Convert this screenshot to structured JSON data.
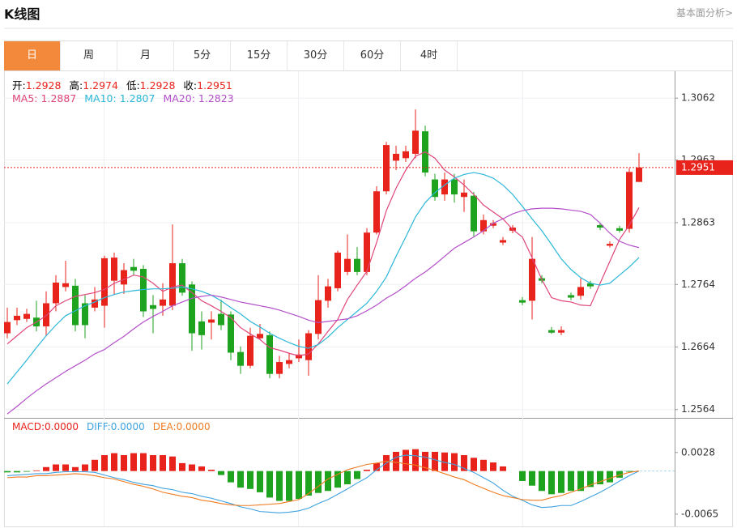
{
  "header": {
    "title": "K线图",
    "link": "基本面分析>"
  },
  "tabs": [
    {
      "label": "日",
      "active": true
    },
    {
      "label": "周"
    },
    {
      "label": "月"
    },
    {
      "label": "5分"
    },
    {
      "label": "15分"
    },
    {
      "label": "30分"
    },
    {
      "label": "60分"
    },
    {
      "label": "4时"
    }
  ],
  "chart_data": [
    {
      "type": "candlestick",
      "info": [
        {
          "label": "开:",
          "value": 1.2928
        },
        {
          "label": "高:",
          "value": 1.2974
        },
        {
          "label": "低:",
          "value": 1.2928
        },
        {
          "label": "收:",
          "value": 1.2951
        }
      ],
      "categories": [
        null,
        null,
        null,
        null,
        null,
        null,
        null,
        null,
        null,
        null,
        null,
        null,
        null,
        null,
        null,
        null,
        null,
        null,
        null,
        null,
        null,
        null,
        null,
        null,
        null,
        null,
        null,
        null,
        null,
        null,
        null,
        null,
        null,
        null,
        null,
        null,
        null,
        null,
        null,
        null,
        null,
        null,
        null,
        null,
        null,
        null,
        null,
        null,
        null,
        null,
        null,
        null,
        null,
        null,
        null,
        null,
        null,
        null,
        null,
        null,
        null,
        null,
        null,
        null,
        null,
        null
      ],
      "open": [
        1.2686,
        1.2707,
        1.2709,
        1.2711,
        1.2697,
        1.2734,
        1.276,
        1.2762,
        1.2734,
        1.2727,
        1.273,
        1.277,
        1.2764,
        1.2792,
        1.2789,
        1.2731,
        1.273,
        1.273,
        1.2798,
        1.2764,
        1.2705,
        1.2703,
        1.2717,
        1.2716,
        1.2656,
        1.2634,
        1.2678,
        1.2683,
        1.2621,
        1.2637,
        1.2646,
        1.2643,
        1.2685,
        1.2738,
        1.2758,
        1.2784,
        1.2805,
        1.2784,
        1.2847,
        1.2913,
        1.2962,
        1.2966,
        1.2973,
        1.3009,
        1.2932,
        1.2908,
        1.2932,
        1.2904,
        1.2906,
        1.2849,
        1.2858,
        1.2831,
        1.285,
        1.2739,
        1.2738,
        1.2774,
        1.2691,
        1.2687,
        1.2747,
        1.2746,
        1.2766,
        1.2859,
        1.2826,
        1.2854,
        1.2853,
        1.2928
      ],
      "high": [
        1.2727,
        1.2727,
        1.2725,
        1.2738,
        1.2753,
        1.2779,
        1.2802,
        1.2773,
        1.2747,
        1.276,
        1.281,
        1.2815,
        1.2798,
        1.2805,
        1.2795,
        1.2747,
        1.2766,
        1.286,
        1.2805,
        1.2769,
        1.2721,
        1.2721,
        1.274,
        1.2721,
        1.2665,
        1.2695,
        1.2701,
        1.2689,
        1.265,
        1.2654,
        1.2676,
        1.2691,
        1.2779,
        1.2773,
        1.2818,
        1.2844,
        1.2824,
        1.2854,
        1.2921,
        1.2992,
        1.2986,
        1.2986,
        1.3044,
        1.3018,
        1.2941,
        1.2943,
        1.2941,
        1.2932,
        1.2912,
        1.2876,
        1.2867,
        1.284,
        1.2859,
        1.2744,
        1.284,
        1.2779,
        1.2696,
        1.2697,
        1.2751,
        1.2774,
        1.277,
        1.2863,
        1.2833,
        1.2858,
        1.295,
        1.2974
      ],
      "low": [
        1.2678,
        1.2699,
        1.2704,
        1.2689,
        1.2682,
        1.2721,
        1.2753,
        1.2689,
        1.2678,
        1.2721,
        1.2695,
        1.2747,
        1.2749,
        1.2779,
        1.2712,
        1.2686,
        1.2714,
        1.2723,
        1.2746,
        1.2658,
        1.266,
        1.2676,
        1.2691,
        1.2643,
        1.2621,
        1.263,
        1.2676,
        1.2614,
        1.2614,
        1.263,
        1.264,
        1.2618,
        1.2676,
        1.2727,
        1.2753,
        1.2779,
        1.2779,
        1.2779,
        1.2844,
        1.2908,
        1.2947,
        1.296,
        1.2966,
        1.2937,
        1.2898,
        1.2898,
        1.2895,
        1.288,
        1.2841,
        1.2844,
        1.2854,
        1.2827,
        1.2846,
        1.2731,
        1.2708,
        1.2766,
        1.2685,
        1.2683,
        1.2739,
        1.274,
        1.2757,
        1.2851,
        1.2823,
        1.2847,
        1.2847,
        1.2928
      ],
      "close": [
        1.2704,
        1.2714,
        1.2717,
        1.2697,
        1.2734,
        1.2767,
        1.2766,
        1.2699,
        1.2699,
        1.274,
        1.2806,
        1.2807,
        1.2787,
        1.2786,
        1.2721,
        1.2725,
        1.274,
        1.2798,
        1.2751,
        1.2686,
        1.2683,
        1.2708,
        1.2699,
        1.2655,
        1.2634,
        1.2682,
        1.2685,
        1.2621,
        1.264,
        1.2643,
        1.2652,
        1.2686,
        1.2739,
        1.2761,
        1.2815,
        1.2805,
        1.2784,
        1.2847,
        1.2913,
        1.2987,
        1.2973,
        1.2977,
        1.301,
        1.2943,
        1.2904,
        1.2932,
        1.2908,
        1.2911,
        1.2849,
        1.2867,
        1.2862,
        1.2835,
        1.2855,
        1.2735,
        1.2805,
        1.277,
        1.2687,
        1.2691,
        1.2743,
        1.276,
        1.2761,
        1.2855,
        1.2829,
        1.285,
        1.2944,
        1.2951
      ],
      "up_color": "#e8231b",
      "down_color": "#1ea31e",
      "series": [
        {
          "name": "MA5:",
          "color": "#e0457b",
          "values": [
            1.2669,
            1.2682,
            1.2695,
            1.2704,
            1.2714,
            1.273,
            1.2738,
            1.2745,
            1.2748,
            1.2751,
            1.2756,
            1.2766,
            1.2772,
            1.2779,
            1.2776,
            1.2766,
            1.2753,
            1.276,
            1.2763,
            1.2751,
            1.2738,
            1.273,
            1.2721,
            1.2711,
            1.2695,
            1.2685,
            1.2676,
            1.2663,
            1.2659,
            1.2654,
            1.265,
            1.2653,
            1.2669,
            1.2689,
            1.2708,
            1.274,
            1.2763,
            1.2785,
            1.2831,
            1.2882,
            1.2918,
            1.2947,
            1.2969,
            1.2976,
            1.2966,
            1.2947,
            1.2936,
            1.2923,
            1.2908,
            1.2891,
            1.288,
            1.2869,
            1.2852,
            1.284,
            1.2807,
            1.2772,
            1.2743,
            1.2738,
            1.2736,
            1.2731,
            1.273,
            1.2766,
            1.2801,
            1.2836,
            1.2859,
            1.2887
          ]
        },
        {
          "name": "MA10:",
          "color": "#2bb7d8",
          "values": [
            1.2605,
            1.2624,
            1.2643,
            1.2663,
            1.2682,
            1.2699,
            1.2714,
            1.2722,
            1.273,
            1.2736,
            1.2743,
            1.2748,
            1.2752,
            1.2754,
            1.2756,
            1.2757,
            1.2757,
            1.2758,
            1.276,
            1.2757,
            1.2753,
            1.2747,
            1.2738,
            1.2727,
            1.2717,
            1.2705,
            1.2696,
            1.2686,
            1.2678,
            1.2671,
            1.2665,
            1.2662,
            1.2668,
            1.268,
            1.2695,
            1.2708,
            1.2721,
            1.2734,
            1.2753,
            1.2776,
            1.2809,
            1.284,
            1.2872,
            1.2895,
            1.2911,
            1.2923,
            1.2934,
            1.294,
            1.2943,
            1.294,
            1.2934,
            1.2923,
            1.2908,
            1.2889,
            1.2869,
            1.285,
            1.2828,
            1.2805,
            1.2788,
            1.2775,
            1.2766,
            1.2763,
            1.2766,
            1.2779,
            1.2792,
            1.2807
          ]
        },
        {
          "name": "MA20:",
          "color": "#b44fca",
          "values": [
            1.2557,
            1.2569,
            1.2582,
            1.2594,
            1.2605,
            1.2615,
            1.2625,
            1.2634,
            1.2643,
            1.2653,
            1.266,
            1.2671,
            1.2681,
            1.2693,
            1.2704,
            1.2713,
            1.2721,
            1.273,
            1.2736,
            1.2742,
            1.2745,
            1.2747,
            1.2744,
            1.274,
            1.2736,
            1.2733,
            1.273,
            1.2727,
            1.2723,
            1.2718,
            1.2713,
            1.2707,
            1.2703,
            1.2705,
            1.2707,
            1.2709,
            1.2714,
            1.2722,
            1.2731,
            1.2742,
            1.2751,
            1.2762,
            1.2774,
            1.2784,
            1.2796,
            1.2809,
            1.2822,
            1.2831,
            1.284,
            1.285,
            1.2862,
            1.2869,
            1.2877,
            1.2882,
            1.2885,
            1.2886,
            1.2886,
            1.2885,
            1.2883,
            1.2881,
            1.2876,
            1.2862,
            1.2846,
            1.2833,
            1.2827,
            1.2823
          ]
        }
      ],
      "last_price": {
        "value": 1.2951,
        "color": "#e8231b"
      },
      "ylim": [
        1.2552,
        1.3105
      ],
      "yticks": [
        1.3062,
        1.2963,
        1.2863,
        1.2764,
        1.2664,
        1.2564
      ],
      "grid": true
    },
    {
      "type": "bar",
      "name": "MACD:",
      "legend_label": "0.0000",
      "color": "#e8231b",
      "categories": [
        null,
        null,
        null,
        null,
        null,
        null,
        null,
        null,
        null,
        null,
        null,
        null,
        null,
        null,
        null,
        null,
        null,
        null,
        null,
        null,
        null,
        null,
        null,
        null,
        null,
        null,
        null,
        null,
        null,
        null,
        null,
        null,
        null,
        null,
        null,
        null,
        null,
        null,
        null,
        null,
        null,
        null,
        null,
        null,
        null,
        null,
        null,
        null,
        null,
        null,
        null,
        null,
        null,
        null,
        null,
        null,
        null,
        null,
        null,
        null,
        null,
        null,
        null,
        null,
        null,
        null
      ],
      "values": [
        -0.0002,
        -0.0002,
        -0.0001,
        0.0001,
        0.0006,
        0.001,
        0.001,
        0.0006,
        0.001,
        0.0017,
        0.0024,
        0.0027,
        0.0024,
        0.0027,
        0.0027,
        0.0024,
        0.0024,
        0.0022,
        0.0012,
        0.001,
        0.0007,
        0.0002,
        -0.0006,
        -0.0017,
        -0.0025,
        -0.0027,
        -0.0032,
        -0.004,
        -0.0045,
        -0.0045,
        -0.0042,
        -0.0037,
        -0.0033,
        -0.003,
        -0.0025,
        -0.002,
        -0.0012,
        0.0002,
        0.0012,
        0.0024,
        0.0029,
        0.0032,
        0.0033,
        0.0029,
        0.0029,
        0.0028,
        0.0027,
        0.0024,
        0.002,
        0.0017,
        0.0013,
        0.0007,
        0,
        -0.0015,
        -0.0022,
        -0.003,
        -0.0035,
        -0.0033,
        -0.003,
        -0.003,
        -0.0024,
        -0.002,
        -0.0017,
        -0.001,
        -0.0001,
        0
      ],
      "up_color": "#e8231b",
      "down_color": "#1ea31e",
      "series": [
        {
          "name": "DIFF:",
          "legend_label": "0.0000",
          "color": "#3ea2e0",
          "values": [
            -0.0007,
            -0.0006,
            -0.0005,
            -0.0004,
            -0.0004,
            -0.0002,
            -0.0001,
            -0.0001,
            -0.0001,
            -0.0002,
            -0.0006,
            -0.001,
            -0.0013,
            -0.0017,
            -0.002,
            -0.0022,
            -0.0026,
            -0.0028,
            -0.0032,
            -0.0034,
            -0.0038,
            -0.0041,
            -0.0045,
            -0.0049,
            -0.0054,
            -0.0057,
            -0.0061,
            -0.0062,
            -0.0063,
            -0.0062,
            -0.006,
            -0.0056,
            -0.0049,
            -0.0043,
            -0.0035,
            -0.0027,
            -0.0018,
            -0.001,
            0.0002,
            0.0012,
            0.0021,
            0.0024,
            0.0023,
            0.0021,
            0.0017,
            0.0013,
            0.001,
            0.0004,
            -0.0002,
            -0.001,
            -0.0018,
            -0.0029,
            -0.0038,
            -0.0044,
            -0.0051,
            -0.0055,
            -0.0054,
            -0.0052,
            -0.0052,
            -0.0046,
            -0.0039,
            -0.0032,
            -0.0024,
            -0.0015,
            -0.0007,
            0
          ]
        },
        {
          "name": "DEA:",
          "legend_label": "0.0000",
          "color": "#f07b20",
          "values": [
            -0.001,
            -0.0009,
            -0.0009,
            -0.0007,
            -0.0007,
            -0.0006,
            -0.0005,
            -0.0004,
            -0.0005,
            -0.0007,
            -0.001,
            -0.0012,
            -0.0016,
            -0.002,
            -0.0023,
            -0.0027,
            -0.0032,
            -0.0035,
            -0.0038,
            -0.004,
            -0.0044,
            -0.0046,
            -0.0049,
            -0.0051,
            -0.0052,
            -0.0052,
            -0.0051,
            -0.005,
            -0.0049,
            -0.0046,
            -0.0043,
            -0.0034,
            -0.0023,
            -0.0012,
            -0.0005,
            0.0002,
            0.0006,
            0.001,
            0.0012,
            0.0015,
            0.0013,
            0.0011,
            0.0009,
            0.0005,
            0.0001,
            -0.0004,
            -0.0009,
            -0.0013,
            -0.002,
            -0.0026,
            -0.0032,
            -0.0037,
            -0.004,
            -0.0043,
            -0.0044,
            -0.0044,
            -0.004,
            -0.0037,
            -0.0032,
            -0.0027,
            -0.0021,
            -0.0016,
            -0.0011,
            -0.0006,
            -0.0002,
            0
          ]
        }
      ],
      "ylim": [
        -0.0081,
        0.0079
      ],
      "yticks": [
        0.0028,
        -0.0065
      ],
      "grid": false
    }
  ]
}
